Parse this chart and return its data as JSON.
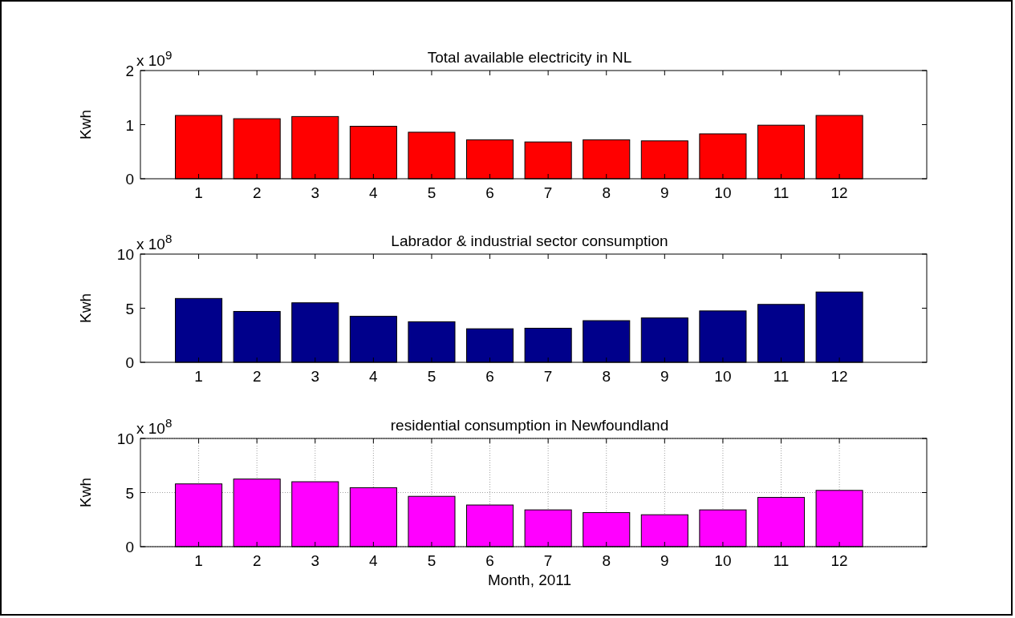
{
  "chart_data": [
    {
      "type": "bar",
      "title": "Total available electricity in NL",
      "ylabel": "Kwh",
      "annotations": [
        "x 10$^{9}$"
      ],
      "x": [
        1,
        2,
        3,
        4,
        5,
        6,
        7,
        8,
        9,
        10,
        11,
        12
      ],
      "xlim": [
        0,
        13.5
      ],
      "xticks": [
        1,
        2,
        3,
        4,
        5,
        6,
        7,
        8,
        9,
        10,
        11,
        12
      ],
      "ylim": [
        0,
        2
      ],
      "yticks": [
        0,
        1,
        2
      ],
      "color": "#ff0000",
      "grid": false,
      "values": [
        1.17,
        1.11,
        1.15,
        0.97,
        0.86,
        0.72,
        0.68,
        0.72,
        0.7,
        0.83,
        0.99,
        1.17
      ]
    },
    {
      "type": "bar",
      "title": "Labrador & industrial sector consumption",
      "ylabel": "Kwh",
      "annotations": [
        "x 10$^{8}$"
      ],
      "x": [
        1,
        2,
        3,
        4,
        5,
        6,
        7,
        8,
        9,
        10,
        11,
        12
      ],
      "xlim": [
        0,
        13.5
      ],
      "xticks": [
        1,
        2,
        3,
        4,
        5,
        6,
        7,
        8,
        9,
        10,
        11,
        12
      ],
      "ylim": [
        0,
        10
      ],
      "yticks": [
        0,
        5,
        10
      ],
      "color": "#00008b",
      "grid": false,
      "values": [
        5.9,
        4.7,
        5.5,
        4.25,
        3.75,
        3.1,
        3.15,
        3.85,
        4.1,
        4.75,
        5.35,
        6.5
      ]
    },
    {
      "type": "bar",
      "title": "residential consumption in Newfoundland",
      "ylabel": "Kwh",
      "xlabel": "Month, 2011",
      "annotations": [
        "x 10$^{8}$"
      ],
      "x": [
        1,
        2,
        3,
        4,
        5,
        6,
        7,
        8,
        9,
        10,
        11,
        12
      ],
      "xlim": [
        0,
        13.5
      ],
      "xticks": [
        1,
        2,
        3,
        4,
        5,
        6,
        7,
        8,
        9,
        10,
        11,
        12
      ],
      "ylim": [
        0,
        10
      ],
      "yticks": [
        0,
        5,
        10
      ],
      "color": "#ff00ff",
      "grid": true,
      "values": [
        5.8,
        6.25,
        6.0,
        5.45,
        4.65,
        3.85,
        3.4,
        3.15,
        2.95,
        3.4,
        4.55,
        5.2
      ]
    }
  ]
}
